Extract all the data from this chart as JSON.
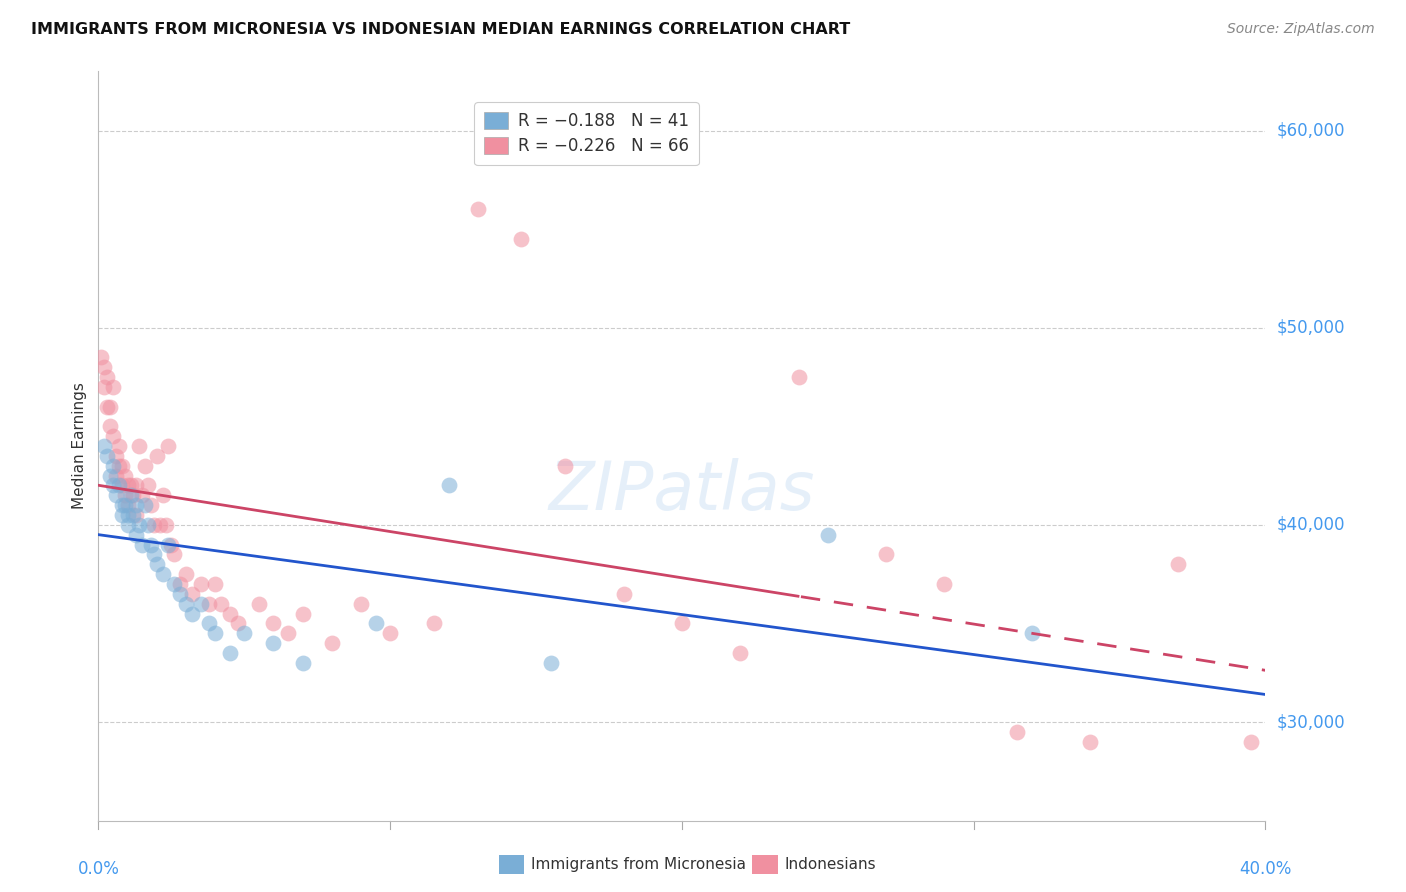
{
  "title": "IMMIGRANTS FROM MICRONESIA VS INDONESIAN MEDIAN EARNINGS CORRELATION CHART",
  "source": "Source: ZipAtlas.com",
  "ylabel": "Median Earnings",
  "yticks": [
    30000,
    40000,
    50000,
    60000
  ],
  "ytick_labels": [
    "$30,000",
    "$40,000",
    "$50,000",
    "$60,000"
  ],
  "ylim": [
    25000,
    63000
  ],
  "xlim": [
    0.0,
    0.4
  ],
  "blue_color": "#7aaed6",
  "pink_color": "#f090a0",
  "blue_line_color": "#2255cc",
  "pink_line_color": "#cc4466",
  "watermark": "ZIPatlas",
  "legend_line1": "R = −0.188   N = 41",
  "legend_line2": "R = −0.226   N = 66"
}
